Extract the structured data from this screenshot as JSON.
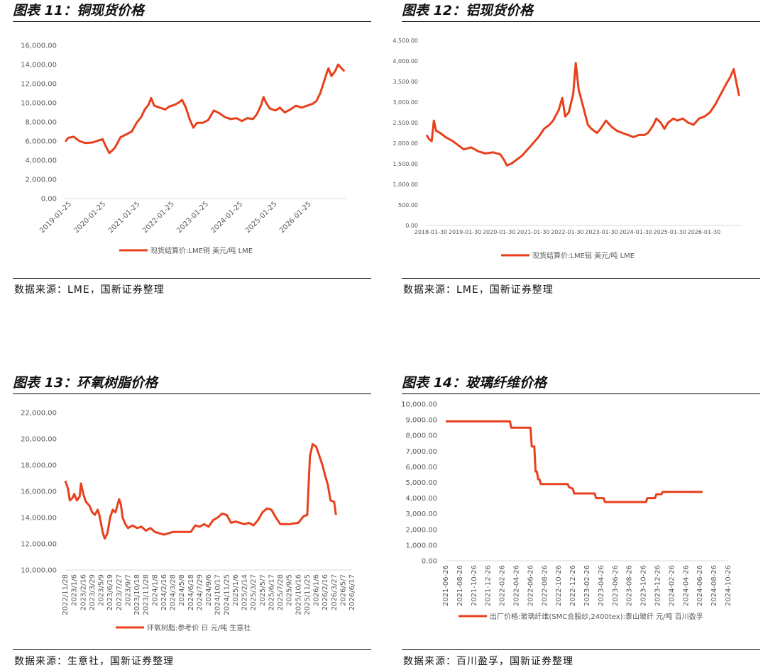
{
  "panels": [
    {
      "title": "图表 11：铜现货价格",
      "source": "数据来源：LME，国新证券整理",
      "chart_data": {
        "type": "line",
        "y_ticks": [
          "0.00",
          "2,000.00",
          "4,000.00",
          "6,000.00",
          "8,000.00",
          "10,000.00",
          "12,000.00",
          "14,000.00",
          "16,000.00"
        ],
        "ylim": [
          0,
          16000
        ],
        "x_ticks": [
          "2019-01-25",
          "2020-01-25",
          "2021-01-25",
          "2022-01-25",
          "2023-01-25",
          "2024-01-25",
          "2025-01-25",
          "2026-01-25"
        ],
        "x_range": [
          2019.07,
          2026.6
        ],
        "legend": "现货结算价:LME铜 美元/吨 LME",
        "legend_position": "bottom",
        "color": "#E8401C",
        "series": [
          [
            2019.07,
            5950
          ],
          [
            2019.15,
            6350
          ],
          [
            2019.3,
            6450
          ],
          [
            2019.45,
            6000
          ],
          [
            2019.6,
            5800
          ],
          [
            2019.8,
            5850
          ],
          [
            2019.95,
            6050
          ],
          [
            2020.07,
            6200
          ],
          [
            2020.15,
            5500
          ],
          [
            2020.25,
            4750
          ],
          [
            2020.4,
            5300
          ],
          [
            2020.55,
            6400
          ],
          [
            2020.7,
            6700
          ],
          [
            2020.85,
            7000
          ],
          [
            2020.98,
            7900
          ],
          [
            2021.1,
            8500
          ],
          [
            2021.2,
            9300
          ],
          [
            2021.3,
            9800
          ],
          [
            2021.37,
            10500
          ],
          [
            2021.45,
            9700
          ],
          [
            2021.6,
            9500
          ],
          [
            2021.75,
            9300
          ],
          [
            2021.85,
            9600
          ],
          [
            2022.0,
            9800
          ],
          [
            2022.1,
            10000
          ],
          [
            2022.2,
            10300
          ],
          [
            2022.3,
            9500
          ],
          [
            2022.4,
            8300
          ],
          [
            2022.5,
            7400
          ],
          [
            2022.6,
            7900
          ],
          [
            2022.75,
            7900
          ],
          [
            2022.9,
            8200
          ],
          [
            2023.05,
            9200
          ],
          [
            2023.2,
            8900
          ],
          [
            2023.35,
            8500
          ],
          [
            2023.5,
            8300
          ],
          [
            2023.65,
            8400
          ],
          [
            2023.8,
            8100
          ],
          [
            2023.95,
            8400
          ],
          [
            2024.1,
            8300
          ],
          [
            2024.2,
            8800
          ],
          [
            2024.32,
            9800
          ],
          [
            2024.38,
            10600
          ],
          [
            2024.45,
            10000
          ],
          [
            2024.55,
            9400
          ],
          [
            2024.7,
            9200
          ],
          [
            2024.82,
            9500
          ],
          [
            2024.95,
            9000
          ],
          [
            2025.1,
            9300
          ],
          [
            2025.25,
            9700
          ],
          [
            2025.4,
            9500
          ],
          [
            2025.55,
            9700
          ],
          [
            2025.7,
            9900
          ],
          [
            2025.8,
            10200
          ],
          [
            2025.9,
            11000
          ],
          [
            2026.0,
            12200
          ],
          [
            2026.08,
            13200
          ],
          [
            2026.12,
            13600
          ],
          [
            2026.2,
            12800
          ],
          [
            2026.3,
            13300
          ],
          [
            2026.38,
            14000
          ],
          [
            2026.47,
            13600
          ],
          [
            2026.55,
            13300
          ]
        ]
      }
    },
    {
      "title": "图表 12：铝现货价格",
      "source": "数据来源：LME，国新证券整理",
      "chart_data": {
        "type": "line",
        "y_ticks": [
          "0.00",
          "500.00",
          "1,000.00",
          "1,500.00",
          "2,000.00",
          "2,500.00",
          "3,000.00",
          "3,500.00",
          "4,000.00",
          "4,500.00"
        ],
        "ylim": [
          0,
          4500
        ],
        "x_ticks": [
          "2018-01-30",
          "2019-01-30",
          "2020-01-30",
          "2021-01-30",
          "2022-01-30",
          "2023-01-30",
          "2024-01-30",
          "2025-01-30",
          "2026-01-30"
        ],
        "x_range": [
          2018.08,
          2026.7
        ],
        "legend": "现货结算价:LME铝 美元/吨 LME",
        "legend_position": "bottom",
        "color": "#E8401C",
        "series": [
          [
            2018.08,
            2200
          ],
          [
            2018.15,
            2100
          ],
          [
            2018.22,
            2050
          ],
          [
            2018.28,
            2550
          ],
          [
            2018.34,
            2300
          ],
          [
            2018.45,
            2250
          ],
          [
            2018.6,
            2150
          ],
          [
            2018.8,
            2050
          ],
          [
            2018.95,
            1950
          ],
          [
            2019.1,
            1850
          ],
          [
            2019.3,
            1900
          ],
          [
            2019.5,
            1800
          ],
          [
            2019.7,
            1750
          ],
          [
            2019.9,
            1780
          ],
          [
            2020.1,
            1730
          ],
          [
            2020.2,
            1600
          ],
          [
            2020.28,
            1460
          ],
          [
            2020.4,
            1500
          ],
          [
            2020.55,
            1600
          ],
          [
            2020.7,
            1700
          ],
          [
            2020.85,
            1850
          ],
          [
            2021.0,
            2000
          ],
          [
            2021.15,
            2150
          ],
          [
            2021.3,
            2350
          ],
          [
            2021.45,
            2450
          ],
          [
            2021.55,
            2550
          ],
          [
            2021.7,
            2800
          ],
          [
            2021.8,
            3100
          ],
          [
            2021.88,
            2650
          ],
          [
            2021.98,
            2750
          ],
          [
            2022.1,
            3200
          ],
          [
            2022.17,
            3950
          ],
          [
            2022.25,
            3300
          ],
          [
            2022.4,
            2800
          ],
          [
            2022.5,
            2450
          ],
          [
            2022.6,
            2350
          ],
          [
            2022.75,
            2250
          ],
          [
            2022.85,
            2350
          ],
          [
            2023.0,
            2550
          ],
          [
            2023.15,
            2400
          ],
          [
            2023.3,
            2300
          ],
          [
            2023.45,
            2250
          ],
          [
            2023.6,
            2200
          ],
          [
            2023.75,
            2150
          ],
          [
            2023.9,
            2200
          ],
          [
            2024.05,
            2200
          ],
          [
            2024.15,
            2250
          ],
          [
            2024.3,
            2450
          ],
          [
            2024.38,
            2600
          ],
          [
            2024.5,
            2500
          ],
          [
            2024.6,
            2350
          ],
          [
            2024.7,
            2500
          ],
          [
            2024.85,
            2600
          ],
          [
            2024.95,
            2550
          ],
          [
            2025.1,
            2600
          ],
          [
            2025.25,
            2500
          ],
          [
            2025.4,
            2450
          ],
          [
            2025.55,
            2600
          ],
          [
            2025.7,
            2650
          ],
          [
            2025.85,
            2750
          ],
          [
            2026.0,
            2950
          ],
          [
            2026.15,
            3200
          ],
          [
            2026.3,
            3450
          ],
          [
            2026.4,
            3600
          ],
          [
            2026.5,
            3800
          ],
          [
            2026.58,
            3450
          ],
          [
            2026.65,
            3150
          ]
        ]
      }
    },
    {
      "title": "图表 13：环氧树脂价格",
      "source": "数据来源：生意社，国新证券整理",
      "chart_data": {
        "type": "line",
        "y_ticks": [
          "10,000.00",
          "12,000.00",
          "14,000.00",
          "16,000.00",
          "18,000.00",
          "20,000.00",
          "22,000.00"
        ],
        "ylim": [
          10000,
          22000
        ],
        "x_ticks": [
          "2022/11/28",
          "2023/1/6",
          "2023/2/16",
          "2023/3/29",
          "2023/5/9",
          "2023/6/19",
          "2023/7/27",
          "2023/9/7",
          "2023/10/18",
          "2023/11/28",
          "2024/1/8",
          "2024/2/16",
          "2024/3/28",
          "2024/5/8",
          "2024/6/18",
          "2024/7/29",
          "2024/9/6",
          "2024/10/17",
          "2024/11/25",
          "2025/1/6",
          "2025/2/14",
          "2025/3/27",
          "2025/5/7",
          "2025/6/17",
          "2025/7/28",
          "2025/9/5",
          "2025/10/16",
          "2025/11/25",
          "2026/1/6",
          "2026/2/16",
          "2026/3/27",
          "2026/5/7",
          "2026/6/17"
        ],
        "x_range": [
          0,
          32
        ],
        "legend": "环氧树脂:参考价 日 元/吨 生意社",
        "legend_position": "bottom",
        "color": "#E8401C",
        "series": [
          [
            0,
            16800
          ],
          [
            0.3,
            16200
          ],
          [
            0.5,
            15300
          ],
          [
            0.8,
            15500
          ],
          [
            1.0,
            15800
          ],
          [
            1.3,
            15300
          ],
          [
            1.6,
            15600
          ],
          [
            1.75,
            16600
          ],
          [
            2.0,
            15800
          ],
          [
            2.3,
            15200
          ],
          [
            2.7,
            14900
          ],
          [
            3.0,
            14400
          ],
          [
            3.3,
            14200
          ],
          [
            3.6,
            14600
          ],
          [
            3.8,
            14200
          ],
          [
            4.0,
            13500
          ],
          [
            4.2,
            12800
          ],
          [
            4.4,
            12400
          ],
          [
            4.7,
            12800
          ],
          [
            5.0,
            14000
          ],
          [
            5.3,
            14600
          ],
          [
            5.6,
            14400
          ],
          [
            5.8,
            14900
          ],
          [
            6.0,
            15400
          ],
          [
            6.2,
            15000
          ],
          [
            6.4,
            14000
          ],
          [
            6.7,
            13500
          ],
          [
            7.0,
            13200
          ],
          [
            7.5,
            13400
          ],
          [
            8.0,
            13200
          ],
          [
            8.5,
            13300
          ],
          [
            9.0,
            13000
          ],
          [
            9.5,
            13200
          ],
          [
            10.0,
            12900
          ],
          [
            10.5,
            12800
          ],
          [
            11.0,
            12700
          ],
          [
            11.5,
            12800
          ],
          [
            12.0,
            12900
          ],
          [
            13.0,
            12900
          ],
          [
            14.0,
            12900
          ],
          [
            14.5,
            13400
          ],
          [
            15.0,
            13300
          ],
          [
            15.5,
            13500
          ],
          [
            16.0,
            13300
          ],
          [
            16.5,
            13800
          ],
          [
            17.0,
            14000
          ],
          [
            17.5,
            14300
          ],
          [
            18.0,
            14200
          ],
          [
            18.5,
            13600
          ],
          [
            19.0,
            13700
          ],
          [
            20.0,
            13500
          ],
          [
            20.5,
            13600
          ],
          [
            21.0,
            13400
          ],
          [
            21.5,
            13800
          ],
          [
            22.0,
            14400
          ],
          [
            22.5,
            14700
          ],
          [
            23.0,
            14600
          ],
          [
            23.5,
            14000
          ],
          [
            24.0,
            13500
          ],
          [
            25.0,
            13500
          ],
          [
            26.0,
            13600
          ],
          [
            26.6,
            14100
          ],
          [
            27.0,
            14200
          ],
          [
            27.3,
            18700
          ],
          [
            27.6,
            19600
          ],
          [
            28.0,
            19400
          ],
          [
            28.3,
            18800
          ],
          [
            28.7,
            18000
          ],
          [
            29.0,
            17200
          ],
          [
            29.3,
            16500
          ],
          [
            29.6,
            15300
          ],
          [
            30.0,
            15200
          ],
          [
            30.2,
            14200
          ]
        ]
      }
    },
    {
      "title": "图表 14：玻璃纤维价格",
      "source": "数据来源：百川盈孚，国新证券整理",
      "chart_data": {
        "type": "line",
        "y_ticks": [
          "0.00",
          "1,000.00",
          "2,000.00",
          "3,000.00",
          "4,000.00",
          "5,000.00",
          "6,000.00",
          "7,000.00",
          "8,000.00",
          "9,000.00",
          "10,000.00"
        ],
        "ylim": [
          0,
          10000
        ],
        "x_ticks": [
          "2021-06-26",
          "2021-08-26",
          "2021-10-26",
          "2021-12-26",
          "2022-02-26",
          "2022-04-26",
          "2022-06-26",
          "2022-08-26",
          "2022-10-26",
          "2022-12-26",
          "2023-02-26",
          "2023-04-26",
          "2023-06-26",
          "2023-08-26",
          "2023-10-26",
          "2023-12-26",
          "2024-02-26",
          "2024-04-26",
          "2024-06-26",
          "2024-08-26",
          "2024-10-26"
        ],
        "x_range": [
          0,
          22
        ],
        "legend": "出厂价格:玻璃纤维(SMC合股纱,2400tex):泰山玻纤 元/吨 百川盈孚",
        "legend_position": "bottom",
        "color": "#E8401C",
        "series": [
          [
            0,
            8900
          ],
          [
            5.0,
            8900
          ],
          [
            5.1,
            8500
          ],
          [
            6.6,
            8500
          ],
          [
            6.7,
            7300
          ],
          [
            6.9,
            7300
          ],
          [
            7.0,
            5700
          ],
          [
            7.1,
            5700
          ],
          [
            7.2,
            5200
          ],
          [
            7.3,
            5200
          ],
          [
            7.4,
            4900
          ],
          [
            9.5,
            4900
          ],
          [
            9.6,
            4700
          ],
          [
            9.9,
            4600
          ],
          [
            10.0,
            4300
          ],
          [
            11.6,
            4300
          ],
          [
            11.7,
            4000
          ],
          [
            12.3,
            4000
          ],
          [
            12.4,
            3750
          ],
          [
            15.6,
            3750
          ],
          [
            15.7,
            4000
          ],
          [
            16.3,
            4000
          ],
          [
            16.4,
            4250
          ],
          [
            16.8,
            4250
          ],
          [
            16.9,
            4400
          ],
          [
            20.0,
            4400
          ]
        ]
      }
    }
  ]
}
